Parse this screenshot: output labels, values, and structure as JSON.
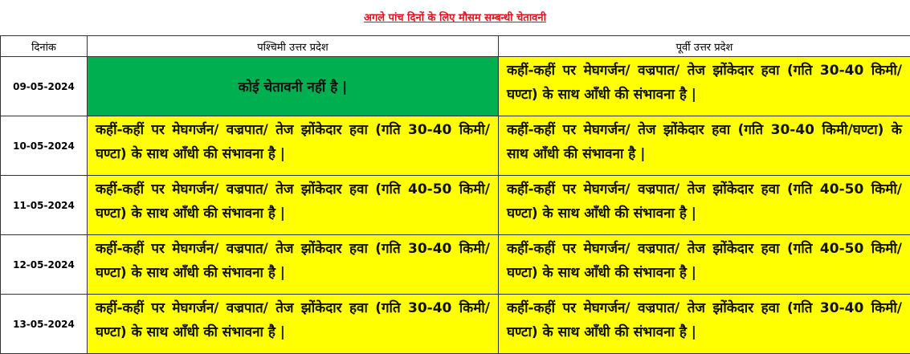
{
  "title": "अगले पांच दिनों के लिए मौसम सम्बन्धी चेतावनी",
  "columns": [
    "दिनांक",
    "पश्चिमी उत्तर प्रदेश",
    "पूर्वी उत्तर प्रदेश"
  ],
  "colors": {
    "no_warning": "#00b050",
    "warning": "#ffff00",
    "title": "#e0141e"
  },
  "rows": [
    {
      "date": "09-05-2024",
      "west": "कोई चेतावनी नहीं है |",
      "west_level": "none",
      "east": "कहीं-कहीं पर मेघगर्जन/ वज्रपात/ तेज झोंकेदार हवा (गति  30-40 किमी/घण्टा)  के साथ आँधी की संभावना है |",
      "east_level": "warning"
    },
    {
      "date": "10-05-2024",
      "west": "कहीं-कहीं पर मेघगर्जन/ वज्रपात/ तेज झोंकेदार हवा (गति  30-40 किमी/घण्टा)  के साथ आँधी की संभावना है |",
      "west_level": "warning",
      "east": "कहीं-कहीं पर मेघगर्जन/ तेज झोंकेदार हवा (गति  30-40 किमी/घण्टा)  के साथ आँधी की संभावना है |",
      "east_level": "warning"
    },
    {
      "date": "11-05-2024",
      "west": "कहीं-कहीं पर मेघगर्जन/ वज्रपात/ तेज झोंकेदार हवा (गति  40-50 किमी/घण्टा)  के साथ आँधी की संभावना है |",
      "west_level": "warning",
      "east": "कहीं-कहीं पर मेघगर्जन/ वज्रपात/ तेज झोंकेदार हवा (गति  40-50 किमी/घण्टा)  के साथ आँधी की संभावना है |",
      "east_level": "warning"
    },
    {
      "date": "12-05-2024",
      "west": "कहीं-कहीं पर मेघगर्जन/ वज्रपात/ तेज झोंकेदार हवा (गति  30-40 किमी/घण्टा)  के साथ आँधी की संभावना है |",
      "west_level": "warning",
      "east": "कहीं-कहीं पर मेघगर्जन/ वज्रपात/ तेज झोंकेदार हवा (गति  40-50 किमी/घण्टा)  के साथ आँधी की संभावना है |",
      "east_level": "warning"
    },
    {
      "date": "13-05-2024",
      "west": "कहीं-कहीं पर मेघगर्जन/ वज्रपात/ तेज झोंकेदार हवा (गति  30-40 किमी/घण्टा)  के साथ आँधी की संभावना है |",
      "west_level": "warning",
      "east": "कहीं-कहीं पर मेघगर्जन/ वज्रपात/ तेज झोंकेदार हवा (गति  30-40 किमी/घण्टा)  के साथ आँधी की संभावना है |",
      "east_level": "warning"
    }
  ]
}
